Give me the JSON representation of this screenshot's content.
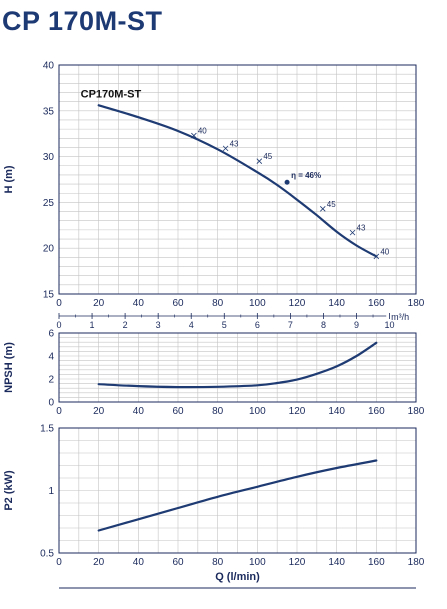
{
  "title": "CP 170M-ST",
  "colors": {
    "curve": "#1f3b73",
    "grid": "#c4c4c4",
    "text": "#1b2a5c",
    "title": "#1e3a74"
  },
  "chart_data": [
    {
      "type": "line",
      "ylabel": "H (m)",
      "xlim": [
        0,
        180
      ],
      "ylim": [
        15,
        40
      ],
      "xticks": [
        0,
        20,
        40,
        60,
        80,
        100,
        120,
        140,
        160,
        180
      ],
      "yticks": [
        15,
        20,
        25,
        30,
        35,
        40
      ],
      "grid": true,
      "series": [
        {
          "name": "CP170M-ST",
          "x": [
            20,
            40,
            60,
            80,
            100,
            110,
            120,
            130,
            140,
            150,
            160
          ],
          "y": [
            35.6,
            34.3,
            32.8,
            30.8,
            28.3,
            26.9,
            25.3,
            23.6,
            21.8,
            20.3,
            19.1
          ]
        }
      ],
      "secondary_axis": {
        "unit": "m³/h",
        "ticks": [
          0,
          1,
          2,
          3,
          4,
          5,
          6,
          7,
          8,
          9,
          10
        ],
        "ticks_per_lmin": 16.667
      },
      "annotations": [
        {
          "x": 68,
          "y": 32.3,
          "text": "40"
        },
        {
          "x": 84,
          "y": 30.9,
          "text": "43"
        },
        {
          "x": 101,
          "y": 29.5,
          "text": "45"
        },
        {
          "x": 115,
          "y": 27.2,
          "text": "η = 46%",
          "bold": true
        },
        {
          "x": 133,
          "y": 24.3,
          "text": "45"
        },
        {
          "x": 148,
          "y": 21.7,
          "text": "43"
        },
        {
          "x": 160,
          "y": 19.1,
          "text": "40"
        }
      ]
    },
    {
      "type": "line",
      "ylabel": "NPSH (m)",
      "xlim": [
        0,
        180
      ],
      "ylim": [
        0,
        6
      ],
      "xticks": [
        0,
        20,
        40,
        60,
        80,
        100,
        120,
        140,
        160,
        180
      ],
      "yticks": [
        0,
        2,
        4,
        6
      ],
      "grid": true,
      "series": [
        {
          "x": [
            20,
            40,
            60,
            80,
            100,
            110,
            120,
            130,
            140,
            150,
            160
          ],
          "y": [
            1.55,
            1.38,
            1.3,
            1.32,
            1.45,
            1.65,
            1.95,
            2.45,
            3.1,
            4.0,
            5.15
          ]
        }
      ]
    },
    {
      "type": "line",
      "ylabel": "P2 (kW)",
      "xlabel": "Q (l/min)",
      "xlim": [
        0,
        180
      ],
      "ylim": [
        0.5,
        1.5
      ],
      "xticks": [
        0,
        20,
        40,
        60,
        80,
        100,
        120,
        140,
        160,
        180
      ],
      "yticks": [
        0.5,
        1,
        1.5
      ],
      "grid": true,
      "series": [
        {
          "x": [
            20,
            40,
            60,
            80,
            100,
            120,
            140,
            160
          ],
          "y": [
            0.68,
            0.77,
            0.86,
            0.95,
            1.03,
            1.11,
            1.18,
            1.24
          ]
        }
      ]
    }
  ]
}
